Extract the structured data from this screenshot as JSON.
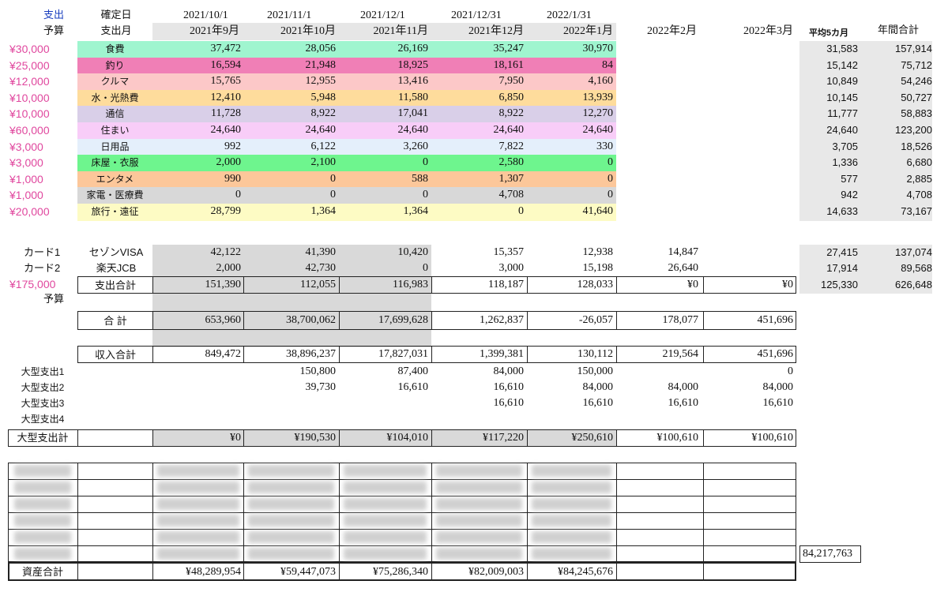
{
  "header": {
    "col0_top": "支出",
    "col0_bottom": "予算",
    "col1_top": "確定日",
    "col1_bottom": "支出月",
    "dates": [
      "2021/10/1",
      "2021/11/1",
      "2021/12/1",
      "2021/12/31",
      "2022/1/31"
    ],
    "months": [
      "2021年9月",
      "2021年10月",
      "2021年11月",
      "2021年12月",
      "2022年1月",
      "2022年2月",
      "2022年3月"
    ],
    "avg_label": "平均5カ月",
    "total_label": "年間合計"
  },
  "categories": [
    {
      "budget": "¥30,000",
      "name": "食費",
      "values": [
        "37,472",
        "28,056",
        "26,169",
        "35,247",
        "30,970",
        "",
        ""
      ],
      "avg": "31,583",
      "total": "157,914",
      "color": "#9ff5cf"
    },
    {
      "budget": "¥25,000",
      "name": "釣り",
      "values": [
        "16,594",
        "21,948",
        "18,925",
        "18,161",
        "84",
        "",
        ""
      ],
      "avg": "15,142",
      "total": "75,712",
      "color": "#f07fb6"
    },
    {
      "budget": "¥12,000",
      "name": "クルマ",
      "values": [
        "15,765",
        "12,955",
        "13,416",
        "7,950",
        "4,160",
        "",
        ""
      ],
      "avg": "10,849",
      "total": "54,246",
      "color": "#fcc8c8"
    },
    {
      "budget": "¥10,000",
      "name": "水・光熱費",
      "values": [
        "12,410",
        "5,948",
        "11,580",
        "6,850",
        "13,939",
        "",
        ""
      ],
      "avg": "10,145",
      "total": "50,727",
      "color": "#fedc9c"
    },
    {
      "budget": "¥10,000",
      "name": "通信",
      "values": [
        "11,728",
        "8,922",
        "17,041",
        "8,922",
        "12,270",
        "",
        ""
      ],
      "avg": "11,777",
      "total": "58,883",
      "color": "#d9cfe8"
    },
    {
      "budget": "¥60,000",
      "name": "住まい",
      "values": [
        "24,640",
        "24,640",
        "24,640",
        "24,640",
        "24,640",
        "",
        ""
      ],
      "avg": "24,640",
      "total": "123,200",
      "color": "#f8cdf8"
    },
    {
      "budget": "¥3,000",
      "name": "日用品",
      "values": [
        "992",
        "6,122",
        "3,260",
        "7,822",
        "330",
        "",
        ""
      ],
      "avg": "3,705",
      "total": "18,526",
      "color": "#e4effb"
    },
    {
      "budget": "¥3,000",
      "name": "床屋・衣服",
      "values": [
        "2,000",
        "2,100",
        "0",
        "2,580",
        "0",
        "",
        ""
      ],
      "avg": "1,336",
      "total": "6,680",
      "color": "#6ef58e"
    },
    {
      "budget": "¥1,000",
      "name": "エンタメ",
      "values": [
        "990",
        "0",
        "588",
        "1,307",
        "0",
        "",
        ""
      ],
      "avg": "577",
      "total": "2,885",
      "color": "#fcc79a"
    },
    {
      "budget": "¥1,000",
      "name": "家電・医療費",
      "values": [
        "0",
        "0",
        "0",
        "4,708",
        "0",
        "",
        ""
      ],
      "avg": "942",
      "total": "4,708",
      "color": "#d8d8d8"
    },
    {
      "budget": "¥20,000",
      "name": "旅行・遠征",
      "values": [
        "28,799",
        "1,364",
        "1,364",
        "0",
        "41,640",
        "",
        ""
      ],
      "avg": "14,633",
      "total": "73,167",
      "color": "#fdfbc4"
    }
  ],
  "cards": {
    "card1_label": "カード1",
    "card1_name": "セゾンVISA",
    "card1_values": [
      "42,122",
      "41,390",
      "10,420",
      "15,357",
      "12,938",
      "14,847",
      ""
    ],
    "card1_avg": "27,415",
    "card1_total": "137,074",
    "card2_label": "カード2",
    "card2_name": "楽天JCB",
    "card2_values": [
      "2,000",
      "42,730",
      "0",
      "3,000",
      "15,198",
      "26,640",
      ""
    ],
    "card2_avg": "17,914",
    "card2_total": "89,568"
  },
  "spend_total": {
    "budget": "¥175,000",
    "budget_label": "予算",
    "label": "支出合計",
    "values": [
      "151,390",
      "112,055",
      "116,983",
      "118,187",
      "128,033",
      "¥0",
      "¥0"
    ],
    "avg": "125,330",
    "total": "626,648"
  },
  "sum_row": {
    "label": "合  計",
    "values": [
      "653,960",
      "38,700,062",
      "17,699,628",
      "1,262,837",
      "-26,057",
      "178,077",
      "451,696"
    ]
  },
  "income_row": {
    "label": "収入合計",
    "values": [
      "849,472",
      "38,896,237",
      "17,827,031",
      "1,399,381",
      "130,112",
      "219,564",
      "451,696"
    ]
  },
  "large": {
    "rows": [
      {
        "label": "大型支出1",
        "values": [
          "",
          "150,800",
          "87,400",
          "84,000",
          "150,000",
          "",
          "0"
        ]
      },
      {
        "label": "大型支出2",
        "values": [
          "",
          "39,730",
          "16,610",
          "16,610",
          "84,000",
          "84,000",
          "84,000"
        ]
      },
      {
        "label": "大型支出3",
        "values": [
          "",
          "",
          "",
          "16,610",
          "16,610",
          "16,610",
          "16,610"
        ]
      },
      {
        "label": "大型支出4",
        "values": [
          "",
          "",
          "",
          "",
          "",
          "",
          ""
        ]
      }
    ],
    "total_label": "大型支出計",
    "total_values": [
      "¥0",
      "¥190,530",
      "¥104,010",
      "¥117,220",
      "¥250,610",
      "¥100,610",
      "¥100,610"
    ]
  },
  "assets": {
    "side_value": "84,217,763",
    "total_label": "資産合計",
    "total_values": [
      "¥48,289,954",
      "¥59,447,073",
      "¥75,286,340",
      "¥82,009,003",
      "¥84,245,676",
      "",
      ""
    ]
  }
}
